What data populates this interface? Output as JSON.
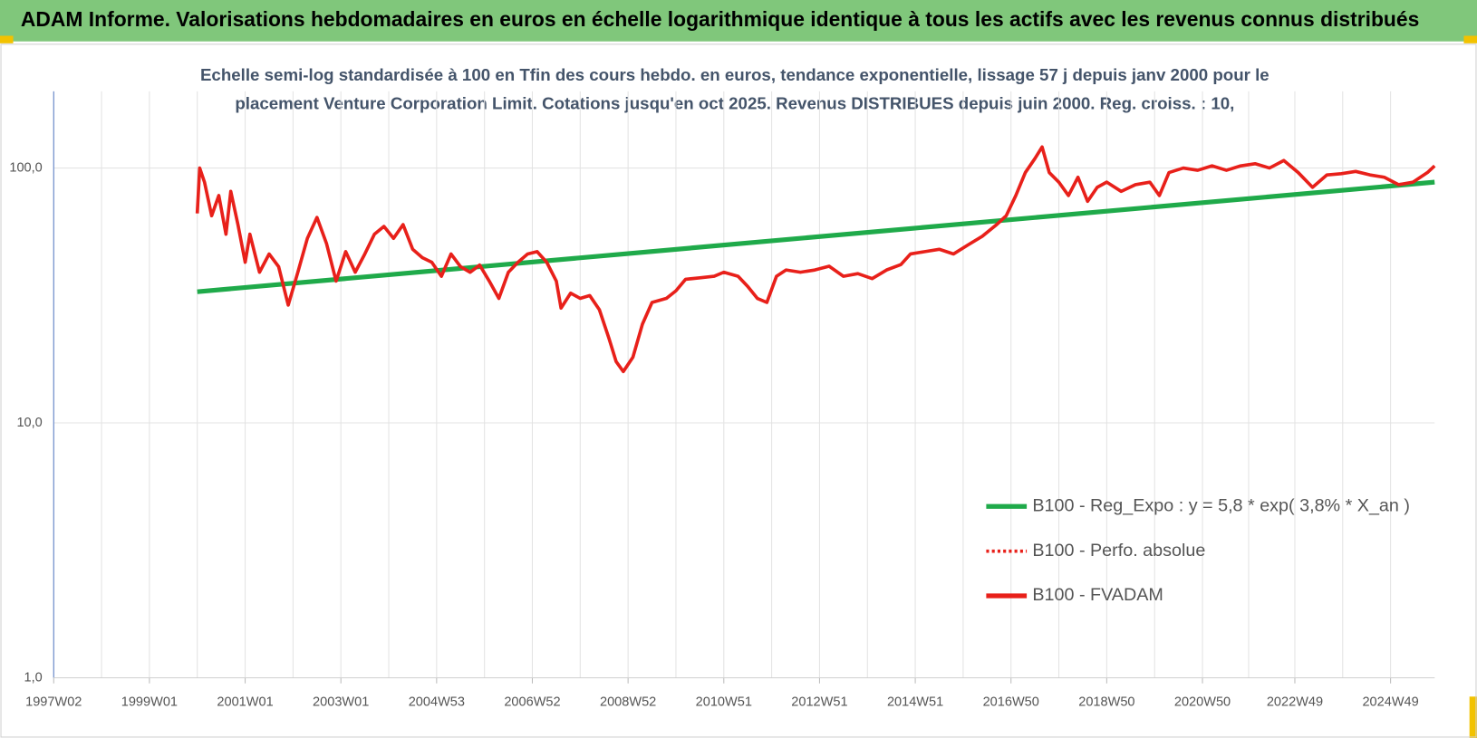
{
  "header": {
    "title": "ADAM Informe. Valorisations hebdomadaires en euros en échelle logarithmique identique à tous les actifs avec les revenus connus distribués"
  },
  "chart_data": {
    "type": "line",
    "title": [
      "Echelle semi-log standardisée à 100 en Tfin des cours hebdo. en euros, tendance exponentielle, lissage 57 j depuis janv 2000 pour le",
      "placement Venture Corporation Limit. Cotations jusqu'en oct 2025. Revenus DISTRIBUES depuis juin 2000. Reg. croiss. : 10,"
    ],
    "log_y": true,
    "grid": true,
    "legend": "right",
    "xlim": [
      1997.0,
      2025.85
    ],
    "xticks": [
      {
        "value": 1997.0,
        "label": "1997W02"
      },
      {
        "value": 1999.0,
        "label": "1999W01"
      },
      {
        "value": 2001.0,
        "label": "2001W01"
      },
      {
        "value": 2003.0,
        "label": "2003W01"
      },
      {
        "value": 2005.0,
        "label": "2004W53"
      },
      {
        "value": 2007.0,
        "label": "2006W52"
      },
      {
        "value": 2009.0,
        "label": "2008W52"
      },
      {
        "value": 2011.0,
        "label": "2010W51"
      },
      {
        "value": 2013.0,
        "label": "2012W51"
      },
      {
        "value": 2015.0,
        "label": "2014W51"
      },
      {
        "value": 2017.0,
        "label": "2016W50"
      },
      {
        "value": 2019.0,
        "label": "2018W50"
      },
      {
        "value": 2021.0,
        "label": "2020W50"
      },
      {
        "value": 2022.93,
        "label": "2022W49"
      },
      {
        "value": 2024.93,
        "label": "2024W49"
      }
    ],
    "ylim": [
      1,
      200
    ],
    "yticks": [
      {
        "value": 1,
        "label": "1,0"
      },
      {
        "value": 10,
        "label": "10,0"
      },
      {
        "value": 100,
        "label": "100,0"
      }
    ],
    "series": [
      {
        "name": "B100 - Reg_Expo : y = 5,8 * exp( 3,8% *  X_an )",
        "color": "#1faa4a",
        "style": "solid",
        "x": [
          2000.0,
          2025.85
        ],
        "values": [
          32.7,
          88
        ]
      },
      {
        "name": "B100 - Perfo. absolue",
        "color": "#e8201a",
        "style": "dotted",
        "x": [],
        "values": []
      },
      {
        "name": "B100 - FVADAM",
        "color": "#e8201a",
        "style": "solid",
        "x": [
          2000.0,
          2000.05,
          2000.15,
          2000.3,
          2000.45,
          2000.6,
          2000.7,
          2000.85,
          2001.0,
          2001.1,
          2001.3,
          2001.5,
          2001.7,
          2001.9,
          2002.1,
          2002.3,
          2002.5,
          2002.7,
          2002.9,
          2003.1,
          2003.3,
          2003.5,
          2003.7,
          2003.9,
          2004.1,
          2004.3,
          2004.5,
          2004.7,
          2004.9,
          2005.1,
          2005.3,
          2005.5,
          2005.7,
          2005.9,
          2006.1,
          2006.3,
          2006.5,
          2006.7,
          2006.9,
          2007.1,
          2007.3,
          2007.5,
          2007.6,
          2007.8,
          2008.0,
          2008.2,
          2008.4,
          2008.6,
          2008.75,
          2008.9,
          2009.1,
          2009.3,
          2009.5,
          2009.8,
          2010.0,
          2010.2,
          2010.5,
          2010.8,
          2011.0,
          2011.3,
          2011.5,
          2011.7,
          2011.9,
          2012.1,
          2012.3,
          2012.6,
          2012.9,
          2013.2,
          2013.5,
          2013.8,
          2014.1,
          2014.4,
          2014.7,
          2014.9,
          2015.2,
          2015.5,
          2015.8,
          2016.1,
          2016.4,
          2016.7,
          2016.9,
          2017.1,
          2017.3,
          2017.5,
          2017.65,
          2017.8,
          2018.0,
          2018.2,
          2018.4,
          2018.6,
          2018.8,
          2019.0,
          2019.3,
          2019.6,
          2019.9,
          2020.1,
          2020.3,
          2020.6,
          2020.9,
          2021.2,
          2021.5,
          2021.8,
          2022.1,
          2022.4,
          2022.7,
          2023.0,
          2023.3,
          2023.6,
          2023.9,
          2024.2,
          2024.5,
          2024.8,
          2025.1,
          2025.4,
          2025.7,
          2025.85
        ],
        "values": [
          66.4,
          100,
          88,
          65,
          78,
          55,
          81,
          60,
          42.7,
          55,
          39,
          46,
          41,
          29,
          39,
          53,
          64,
          50.6,
          36,
          47,
          39,
          46,
          55,
          59,
          53,
          60,
          48,
          44.5,
          42.7,
          37.6,
          46,
          41,
          39,
          41.6,
          36,
          30.8,
          39,
          42.7,
          46,
          47,
          42.7,
          36,
          28.2,
          32.3,
          30.8,
          31.6,
          27.8,
          21.5,
          17.4,
          15.9,
          18.1,
          24.4,
          29.7,
          30.8,
          33,
          36.6,
          37.1,
          37.6,
          39,
          37.6,
          34.3,
          30.8,
          29.7,
          37.6,
          39.8,
          39,
          39.8,
          41.2,
          37.6,
          38.5,
          36.8,
          39.8,
          41.8,
          46,
          47,
          48,
          46,
          49.9,
          54,
          60,
          65,
          78,
          96,
          109,
          121,
          96,
          88,
          78,
          92,
          74,
          84,
          88,
          81,
          86,
          88,
          78,
          96,
          100,
          98,
          102,
          98,
          102,
          104,
          100,
          107,
          96,
          84,
          94,
          95,
          97,
          94,
          92,
          86,
          88,
          96,
          102
        ]
      }
    ]
  }
}
